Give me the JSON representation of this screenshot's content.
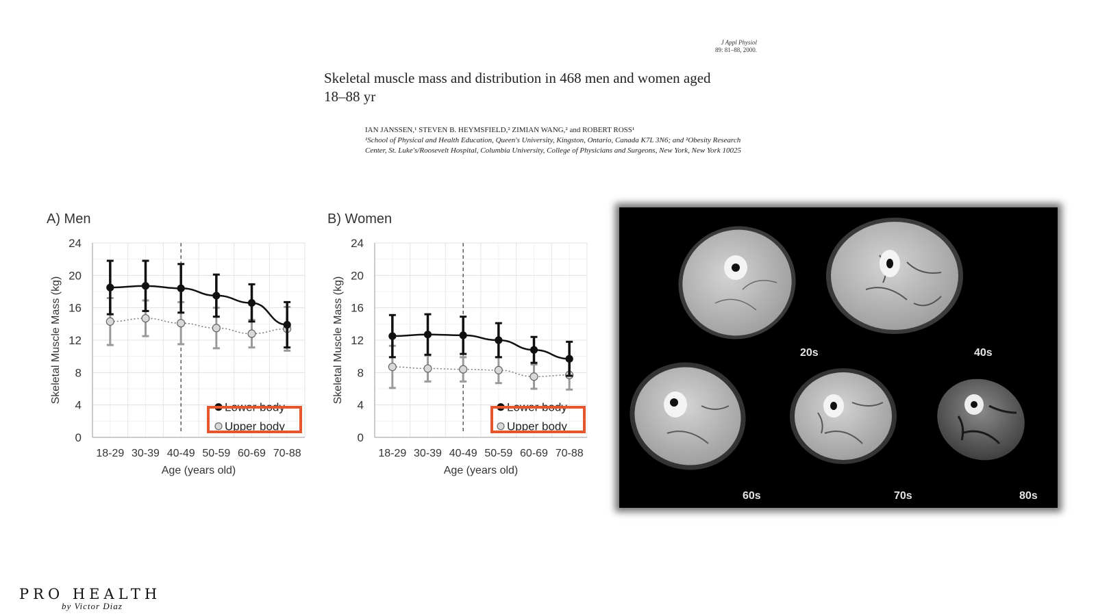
{
  "journal": {
    "name": "J Appl Physiol",
    "citation": "89: 81–88, 2000."
  },
  "paper": {
    "title": "Skeletal muscle mass and distribution in 468 men and women aged 18–88 yr",
    "authors": "IAN JANSSEN,¹ STEVEN B. HEYMSFIELD,² ZIMIAN WANG,² and ROBERT ROSS¹",
    "affiliation": "¹School of Physical and Health Education, Queen's University, Kingston, Ontario, Canada K7L 3N6; and ²Obesity Research Center, St. Luke's/Roosevelt Hospital, Columbia University, College of Physicians and Surgeons, New York, New York 10025"
  },
  "chart_data": [
    {
      "type": "line",
      "title": "A) Men",
      "xlabel": "Age (years old)",
      "ylabel": "Skeletal Muscle Mass (kg)",
      "categories": [
        "18-29",
        "30-39",
        "40-49",
        "50-59",
        "60-69",
        "70-88"
      ],
      "ylim": [
        0,
        24
      ],
      "yticks": [
        0,
        4,
        8,
        12,
        16,
        20,
        24
      ],
      "grid": true,
      "legend_position": "bottom-right",
      "reference_line_category": "40-49",
      "series": [
        {
          "name": "Lower body",
          "color": "#111111",
          "marker": "filled",
          "values": [
            18.5,
            18.7,
            18.4,
            17.5,
            16.6,
            13.9
          ],
          "error": [
            3.3,
            3.1,
            3.0,
            2.6,
            2.3,
            2.8
          ]
        },
        {
          "name": "Upper body",
          "color": "#9a9a9a",
          "marker": "open",
          "values": [
            14.3,
            14.7,
            14.1,
            13.5,
            12.8,
            13.4
          ],
          "error": [
            2.9,
            2.2,
            2.6,
            2.5,
            1.7,
            2.7
          ]
        }
      ]
    },
    {
      "type": "line",
      "title": "B) Women",
      "xlabel": "Age (years old)",
      "ylabel": "Skeletal Muscle Mass (kg)",
      "categories": [
        "18-29",
        "30-39",
        "40-49",
        "50-59",
        "60-69",
        "70-88"
      ],
      "ylim": [
        0,
        24
      ],
      "yticks": [
        0,
        4,
        8,
        12,
        16,
        20,
        24
      ],
      "grid": true,
      "legend_position": "bottom-right",
      "reference_line_category": "40-49",
      "series": [
        {
          "name": "Lower body",
          "color": "#111111",
          "marker": "filled",
          "values": [
            12.5,
            12.7,
            12.6,
            12.0,
            10.8,
            9.7
          ],
          "error": [
            2.6,
            2.5,
            2.3,
            2.1,
            1.6,
            2.1
          ]
        },
        {
          "name": "Upper body",
          "color": "#9a9a9a",
          "marker": "open",
          "values": [
            8.7,
            8.5,
            8.4,
            8.3,
            7.5,
            7.7
          ],
          "error": [
            2.6,
            1.6,
            1.5,
            1.6,
            1.5,
            1.8
          ]
        }
      ]
    }
  ],
  "ct_images": {
    "labels": [
      "20s",
      "40s",
      "60s",
      "70s",
      "80s"
    ]
  },
  "brand": {
    "name": "PRO HEALTH",
    "byline": "by Victor Diaz"
  }
}
